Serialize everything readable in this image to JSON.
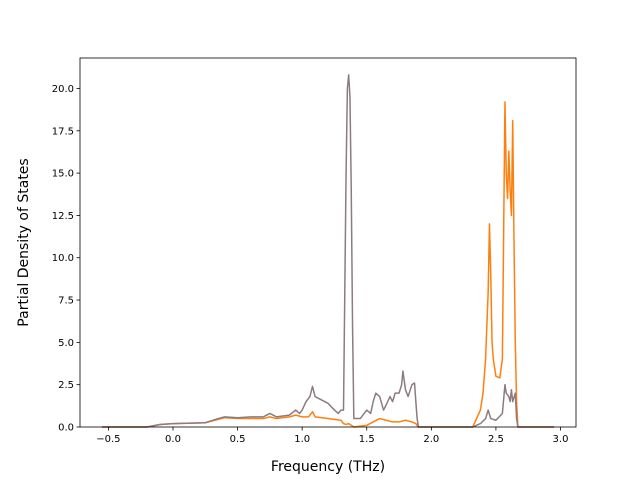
{
  "chart_data": {
    "type": "line",
    "title": "",
    "xlabel": "Frequency (THz)",
    "ylabel": "Partial Density of States",
    "xlim": [
      -0.72,
      3.12
    ],
    "ylim": [
      0,
      21.8
    ],
    "xticks": [
      -0.5,
      0.0,
      0.5,
      1.0,
      1.5,
      2.0,
      2.5,
      3.0
    ],
    "xtick_labels": [
      "−0.5",
      "0.0",
      "0.5",
      "1.0",
      "1.5",
      "2.0",
      "2.5",
      "3.0"
    ],
    "yticks": [
      0.0,
      2.5,
      5.0,
      7.5,
      10.0,
      12.5,
      15.0,
      17.5,
      20.0
    ],
    "ytick_labels": [
      "0.0",
      "2.5",
      "5.0",
      "7.5",
      "10.0",
      "12.5",
      "15.0",
      "17.5",
      "20.0"
    ],
    "grid": false,
    "legend": "none",
    "series": [
      {
        "color": "#ff7f0e",
        "points": [
          [
            -0.55,
            0
          ],
          [
            -0.2,
            0
          ],
          [
            -0.1,
            0.15
          ],
          [
            0.0,
            0.2
          ],
          [
            0.25,
            0.25
          ],
          [
            0.35,
            0.45
          ],
          [
            0.4,
            0.55
          ],
          [
            0.5,
            0.5
          ],
          [
            0.6,
            0.5
          ],
          [
            0.7,
            0.5
          ],
          [
            0.75,
            0.6
          ],
          [
            0.8,
            0.5
          ],
          [
            0.9,
            0.6
          ],
          [
            0.95,
            0.7
          ],
          [
            1.0,
            0.6
          ],
          [
            1.05,
            0.6
          ],
          [
            1.08,
            0.9
          ],
          [
            1.1,
            0.6
          ],
          [
            1.2,
            0.5
          ],
          [
            1.3,
            0.4
          ],
          [
            1.32,
            0.2
          ],
          [
            1.34,
            0.15
          ],
          [
            1.36,
            0.2
          ],
          [
            1.38,
            0.1
          ],
          [
            1.4,
            0
          ],
          [
            1.5,
            0.1
          ],
          [
            1.55,
            0.3
          ],
          [
            1.6,
            0.5
          ],
          [
            1.65,
            0.4
          ],
          [
            1.7,
            0.3
          ],
          [
            1.75,
            0.3
          ],
          [
            1.8,
            0.4
          ],
          [
            1.85,
            0.3
          ],
          [
            1.88,
            0.2
          ],
          [
            1.9,
            0
          ],
          [
            2.0,
            0
          ],
          [
            2.32,
            0
          ],
          [
            2.35,
            0.5
          ],
          [
            2.38,
            1.0
          ],
          [
            2.4,
            2.0
          ],
          [
            2.42,
            4.0
          ],
          [
            2.44,
            8.0
          ],
          [
            2.45,
            12.0
          ],
          [
            2.46,
            9.0
          ],
          [
            2.47,
            5.0
          ],
          [
            2.48,
            4.0
          ],
          [
            2.5,
            3.0
          ],
          [
            2.53,
            2.9
          ],
          [
            2.55,
            4.0
          ],
          [
            2.57,
            19.2
          ],
          [
            2.58,
            15.0
          ],
          [
            2.59,
            13.5
          ],
          [
            2.6,
            16.3
          ],
          [
            2.61,
            14.0
          ],
          [
            2.62,
            12.5
          ],
          [
            2.63,
            18.1
          ],
          [
            2.64,
            11.0
          ],
          [
            2.65,
            5.0
          ],
          [
            2.66,
            1.5
          ],
          [
            2.67,
            0
          ],
          [
            2.95,
            0
          ]
        ]
      },
      {
        "color": "#8c7b80",
        "points": [
          [
            -0.55,
            0
          ],
          [
            -0.2,
            0
          ],
          [
            -0.1,
            0.15
          ],
          [
            0.0,
            0.2
          ],
          [
            0.25,
            0.25
          ],
          [
            0.35,
            0.5
          ],
          [
            0.4,
            0.6
          ],
          [
            0.5,
            0.55
          ],
          [
            0.6,
            0.6
          ],
          [
            0.7,
            0.6
          ],
          [
            0.75,
            0.8
          ],
          [
            0.8,
            0.6
          ],
          [
            0.9,
            0.7
          ],
          [
            0.95,
            1.0
          ],
          [
            0.98,
            0.8
          ],
          [
            1.0,
            1.0
          ],
          [
            1.03,
            1.5
          ],
          [
            1.06,
            1.8
          ],
          [
            1.08,
            2.4
          ],
          [
            1.1,
            1.8
          ],
          [
            1.15,
            1.6
          ],
          [
            1.2,
            1.4
          ],
          [
            1.25,
            1.0
          ],
          [
            1.28,
            0.8
          ],
          [
            1.3,
            1.0
          ],
          [
            1.32,
            1.0
          ],
          [
            1.33,
            8.0
          ],
          [
            1.34,
            15.0
          ],
          [
            1.35,
            20.0
          ],
          [
            1.36,
            20.8
          ],
          [
            1.37,
            19.5
          ],
          [
            1.38,
            14.0
          ],
          [
            1.39,
            6.0
          ],
          [
            1.4,
            0.5
          ],
          [
            1.45,
            0.5
          ],
          [
            1.5,
            1.0
          ],
          [
            1.53,
            0.8
          ],
          [
            1.55,
            1.5
          ],
          [
            1.57,
            2.0
          ],
          [
            1.6,
            1.8
          ],
          [
            1.63,
            1.0
          ],
          [
            1.65,
            1.3
          ],
          [
            1.68,
            1.8
          ],
          [
            1.7,
            1.5
          ],
          [
            1.72,
            2.0
          ],
          [
            1.75,
            2.0
          ],
          [
            1.77,
            2.5
          ],
          [
            1.78,
            3.3
          ],
          [
            1.8,
            2.2
          ],
          [
            1.82,
            1.8
          ],
          [
            1.85,
            2.5
          ],
          [
            1.87,
            2.6
          ],
          [
            1.88,
            1.5
          ],
          [
            1.89,
            0.5
          ],
          [
            1.9,
            0
          ],
          [
            2.0,
            0
          ],
          [
            2.32,
            0
          ],
          [
            2.38,
            0.2
          ],
          [
            2.42,
            0.5
          ],
          [
            2.44,
            1.0
          ],
          [
            2.46,
            0.5
          ],
          [
            2.5,
            0.4
          ],
          [
            2.55,
            0.8
          ],
          [
            2.57,
            2.5
          ],
          [
            2.58,
            2.0
          ],
          [
            2.6,
            1.8
          ],
          [
            2.61,
            1.5
          ],
          [
            2.62,
            2.2
          ],
          [
            2.63,
            1.5
          ],
          [
            2.65,
            2.0
          ],
          [
            2.66,
            0.5
          ],
          [
            2.67,
            0
          ],
          [
            2.95,
            0
          ]
        ]
      }
    ]
  }
}
